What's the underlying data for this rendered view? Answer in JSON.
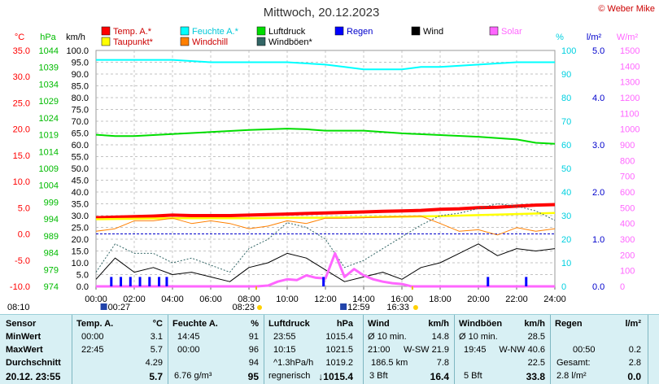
{
  "title": "Mittwoch, 20.12.2023",
  "copyright": "© Weber Mike",
  "colors": {
    "temp": "#ff0000",
    "dew": "#ffff00",
    "humidity": "#00ffff",
    "windchill": "#ff8000",
    "pressure": "#00dd00",
    "gust": "#336666",
    "rain": "#0000ff",
    "wind": "#000000",
    "solar": "#ff66ff",
    "stats_bg": "#d8f0f4"
  },
  "axes": {
    "temp": {
      "unit": "°C",
      "ticks": [
        "35.0",
        "30.0",
        "25.0",
        "20.0",
        "15.0",
        "10.0",
        "5.0",
        "0.0",
        "-5.0",
        "-10.0"
      ]
    },
    "pressure": {
      "unit": "hPa",
      "ticks": [
        "1044",
        "1039",
        "1034",
        "1029",
        "1024",
        "1019",
        "1014",
        "1009",
        "1004",
        "999",
        "994",
        "989",
        "984",
        "979",
        "974"
      ]
    },
    "wind": {
      "unit": "km/h",
      "ticks": [
        "100.0",
        "95.0",
        "90.0",
        "85.0",
        "80.0",
        "75.0",
        "70.0",
        "65.0",
        "60.0",
        "55.0",
        "50.0",
        "45.0",
        "40.0",
        "35.0",
        "30.0",
        "25.0",
        "20.0",
        "15.0",
        "10.0",
        "5.0",
        "0.0"
      ]
    },
    "humidity": {
      "unit": "%",
      "ticks": [
        "100",
        "90",
        "80",
        "70",
        "60",
        "50",
        "40",
        "30",
        "20",
        "10",
        "0"
      ]
    },
    "rain": {
      "unit": "l/m²",
      "ticks": [
        "5.0",
        "4.0",
        "3.0",
        "2.0",
        "1.0",
        "0.0"
      ]
    },
    "solar": {
      "unit": "W/m²",
      "ticks": [
        "1500",
        "1400",
        "1300",
        "1200",
        "1100",
        "1000",
        "900",
        "800",
        "700",
        "600",
        "500",
        "400",
        "300",
        "200",
        "100",
        "0"
      ]
    },
    "time_ticks": [
      "00:00",
      "02:00",
      "04:00",
      "06:00",
      "08:00",
      "10:00",
      "12:00",
      "14:00",
      "16:00",
      "18:00",
      "20:00",
      "22:00",
      "24:00"
    ]
  },
  "legend": [
    {
      "label": "Temp. A.*",
      "color": "#ff0000"
    },
    {
      "label": "Feuchte A.*",
      "color": "#00ffff"
    },
    {
      "label": "Luftdruck",
      "color": "#00dd00"
    },
    {
      "label": "Regen",
      "color": "#0000ff"
    },
    {
      "label": "Wind",
      "color": "#000000"
    },
    {
      "label": "Solar",
      "color": "#ff66ff"
    },
    {
      "label": "Taupunkt*",
      "color": "#ffff00"
    },
    {
      "label": "Windchill",
      "color": "#ff8000"
    },
    {
      "label": "Windböen*",
      "color": "#336666"
    }
  ],
  "sun": {
    "sunrise_civil": "08:10",
    "sunrise": "08:23",
    "sunset": "16:33",
    "sunset_civil": "",
    "moonrise": "00:27",
    "moonset": "12:59"
  },
  "chart_data": {
    "type": "line",
    "x_label": "time",
    "x_range": [
      0,
      24
    ],
    "series": [
      {
        "name": "Temp. A.",
        "unit": "°C",
        "x": [
          0,
          1,
          2,
          3,
          4,
          5,
          6,
          7,
          8,
          9,
          10,
          11,
          12,
          13,
          14,
          15,
          16,
          17,
          18,
          19,
          20,
          21,
          22,
          23,
          24
        ],
        "y": [
          3.1,
          3.2,
          3.3,
          3.4,
          3.6,
          3.5,
          3.5,
          3.5,
          3.6,
          3.7,
          3.8,
          3.9,
          4.0,
          4.1,
          4.2,
          4.3,
          4.4,
          4.5,
          4.7,
          4.8,
          5.0,
          5.1,
          5.3,
          5.5,
          5.6
        ]
      },
      {
        "name": "Taupunkt",
        "unit": "°C",
        "x": [
          0,
          2,
          4,
          6,
          8,
          10,
          12,
          14,
          16,
          18,
          20,
          22,
          24
        ],
        "y": [
          2.8,
          2.9,
          3.0,
          3.0,
          3.0,
          3.1,
          3.1,
          3.2,
          3.3,
          3.4,
          3.6,
          3.8,
          4.0
        ]
      },
      {
        "name": "Feuchte A.",
        "unit": "%",
        "x": [
          0,
          2,
          4,
          6,
          8,
          10,
          12,
          13,
          14,
          15,
          16,
          17,
          18,
          20,
          22,
          23,
          24
        ],
        "y": [
          96,
          96,
          96,
          95,
          95,
          95,
          94,
          93,
          92,
          92,
          92,
          93,
          93,
          94,
          95,
          95,
          95
        ]
      },
      {
        "name": "Luftdruck",
        "unit": "hPa",
        "x": [
          0,
          1,
          2,
          4,
          6,
          8,
          10,
          11,
          12,
          14,
          16,
          18,
          20,
          22,
          23,
          24
        ],
        "y": [
          1019.0,
          1018.6,
          1018.6,
          1019.2,
          1019.8,
          1020.4,
          1020.8,
          1020.6,
          1020.2,
          1020.2,
          1019.4,
          1018.9,
          1018.4,
          1017.6,
          1016.6,
          1016.3
        ]
      },
      {
        "name": "Wind",
        "unit": "km/h",
        "x": [
          0,
          1,
          2,
          3,
          4,
          5,
          6,
          7,
          8,
          9,
          10,
          11,
          12,
          13,
          14,
          15,
          16,
          17,
          18,
          19,
          20,
          21,
          22,
          23,
          24
        ],
        "y": [
          3,
          12,
          6,
          8,
          5,
          6,
          4,
          2,
          8,
          10,
          14,
          12,
          7,
          2,
          4,
          6,
          3,
          8,
          10,
          14,
          18,
          13,
          16,
          15,
          16
        ]
      },
      {
        "name": "Windböen",
        "unit": "km/h",
        "x": [
          0,
          1,
          2,
          3,
          4,
          5,
          6,
          7,
          8,
          9,
          10,
          11,
          12,
          13,
          14,
          15,
          16,
          17,
          18,
          19,
          20,
          21,
          22,
          23,
          24
        ],
        "y": [
          6,
          18,
          14,
          14,
          10,
          12,
          9,
          6,
          16,
          20,
          27,
          25,
          20,
          8,
          11,
          16,
          21,
          26,
          30,
          31,
          33,
          35,
          34,
          32,
          28
        ]
      },
      {
        "name": "Windchill",
        "unit": "°C",
        "x": [
          0,
          1,
          2,
          3,
          4,
          5,
          6,
          7,
          8,
          9,
          10,
          11,
          12,
          13,
          14,
          15,
          16,
          17,
          18,
          19,
          20,
          21,
          22,
          23,
          24
        ],
        "y": [
          0.5,
          1.0,
          2.5,
          2.5,
          3.0,
          2.0,
          2.5,
          2.0,
          1.0,
          1.5,
          2.5,
          2.0,
          3.0,
          3.0,
          3.1,
          3.2,
          3.3,
          3.4,
          2.0,
          0.5,
          0.8,
          -0.2,
          1.2,
          0.5,
          1.0
        ]
      },
      {
        "name": "Solar",
        "unit": "W/m²",
        "x": [
          0,
          8.4,
          9,
          9.5,
          10,
          10.5,
          11,
          11.5,
          12,
          12.5,
          13,
          13.5,
          14,
          14.5,
          15,
          15.5,
          16,
          16.5,
          24
        ],
        "y": [
          0,
          0,
          5,
          30,
          45,
          40,
          70,
          55,
          50,
          210,
          60,
          110,
          70,
          45,
          30,
          20,
          15,
          0,
          0
        ]
      },
      {
        "name": "Regen",
        "unit": "l/m²",
        "x": [
          0.8,
          1.3,
          1.8,
          2.3,
          2.8,
          3.3,
          3.7,
          11.9,
          20.5,
          22.5
        ],
        "y": [
          0.2,
          0.2,
          0.2,
          0.2,
          0.2,
          0.2,
          0.2,
          0.2,
          0.2,
          0.2
        ]
      }
    ]
  },
  "stats": {
    "headers": [
      "Sensor",
      "Temp. A.",
      "°C",
      "Feuchte A.",
      "%",
      "Luftdruck",
      "hPa",
      "Wind",
      "km/h",
      "Windböen",
      "km/h",
      "Regen",
      "l/m²"
    ],
    "min": {
      "label": "MinWert",
      "t_time": "00:00",
      "t_val": "3.1",
      "h_time": "14:45",
      "h_val": "91",
      "p_time": "23:55",
      "p_val": "1015.4",
      "w_label": "Ø 10 min.",
      "w_val": "14.8",
      "g_label": "Ø 10 min.",
      "g_val": "28.5"
    },
    "max": {
      "label": "MaxWert",
      "t_time": "22:45",
      "t_val": "5.7",
      "h_time": "00:00",
      "h_val": "96",
      "p_time": "10:15",
      "p_val": "1021.5",
      "w_time": "21:00",
      "w_val": "W-SW 21.9",
      "g_time": "19:45",
      "g_val": "W-NW 40.6",
      "r_time": "00:50",
      "r_val": "0.2"
    },
    "avg": {
      "label": "Durchschnitt",
      "t_val": "4.29",
      "h_val": "94",
      "p_label": "^1.3hPa/h",
      "p_val": "1019.2",
      "w_label": "186.5 km",
      "w_val": "7.8",
      "g_val": "22.5",
      "r_label": "Gesamt:",
      "r_val": "2.8"
    },
    "now": {
      "label": "20.12. 23:55",
      "t_val": "5.7",
      "h_label": "6.76 g/m³",
      "h_val": "95",
      "p_label": "regnerisch",
      "p_val": "↓1015.4",
      "w_label": "3 Bft",
      "w_val": "16.4",
      "g_label": "5 Bft",
      "g_val": "33.8",
      "r_label": "2.8 l/m²",
      "r_val": "0.0"
    }
  }
}
